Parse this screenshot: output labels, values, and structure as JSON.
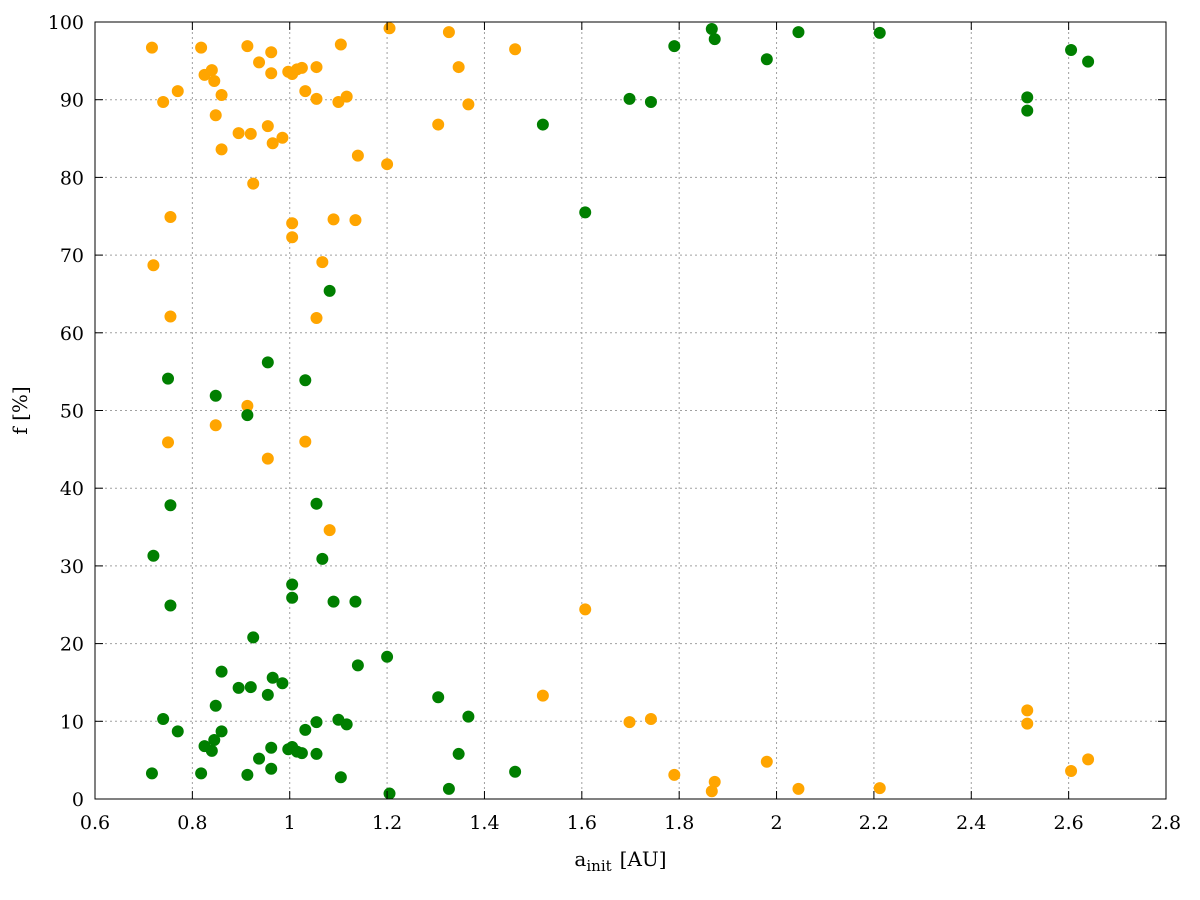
{
  "chart_data": {
    "type": "scatter",
    "title": "",
    "xlabel": "a",
    "xlabel_subscript": "init",
    "xlabel_unit": "[AU]",
    "ylabel": "f [%]",
    "xlim": [
      0.6,
      2.8
    ],
    "ylim": [
      0,
      100
    ],
    "x_ticks": [
      0.6,
      0.8,
      1,
      1.2,
      1.4,
      1.6,
      1.8,
      2,
      2.2,
      2.4,
      2.6,
      2.8
    ],
    "y_ticks": [
      0,
      10,
      20,
      30,
      40,
      50,
      60,
      70,
      80,
      90,
      100
    ],
    "grid": true,
    "legend": "none",
    "series": [
      {
        "color": "#ffa500",
        "points": [
          [
            0.717,
            96.7
          ],
          [
            0.72,
            68.7
          ],
          [
            0.74,
            89.7
          ],
          [
            0.75,
            45.9
          ],
          [
            0.755,
            74.9
          ],
          [
            0.755,
            62.1
          ],
          [
            0.77,
            91.1
          ],
          [
            0.818,
            96.7
          ],
          [
            0.825,
            93.2
          ],
          [
            0.84,
            93.8
          ],
          [
            0.845,
            92.4
          ],
          [
            0.848,
            88.0
          ],
          [
            0.848,
            48.1
          ],
          [
            0.86,
            90.6
          ],
          [
            0.86,
            83.6
          ],
          [
            0.895,
            85.7
          ],
          [
            0.913,
            96.9
          ],
          [
            0.913,
            50.6
          ],
          [
            0.92,
            85.6
          ],
          [
            0.925,
            79.2
          ],
          [
            0.937,
            94.8
          ],
          [
            0.955,
            86.6
          ],
          [
            0.955,
            43.8
          ],
          [
            0.962,
            96.1
          ],
          [
            0.962,
            93.4
          ],
          [
            0.965,
            84.4
          ],
          [
            0.985,
            85.1
          ],
          [
            0.997,
            93.6
          ],
          [
            1.005,
            93.3
          ],
          [
            1.005,
            74.1
          ],
          [
            1.005,
            72.3
          ],
          [
            1.015,
            93.9
          ],
          [
            1.025,
            94.1
          ],
          [
            1.032,
            91.1
          ],
          [
            1.032,
            46.0
          ],
          [
            1.055,
            94.2
          ],
          [
            1.055,
            90.1
          ],
          [
            1.055,
            61.9
          ],
          [
            1.067,
            69.1
          ],
          [
            1.082,
            34.6
          ],
          [
            1.09,
            74.6
          ],
          [
            1.1,
            89.7
          ],
          [
            1.105,
            97.1
          ],
          [
            1.117,
            90.4
          ],
          [
            1.135,
            74.5
          ],
          [
            1.14,
            82.8
          ],
          [
            1.2,
            81.7
          ],
          [
            1.205,
            99.2
          ],
          [
            1.305,
            86.8
          ],
          [
            1.327,
            98.7
          ],
          [
            1.347,
            94.2
          ],
          [
            1.367,
            89.4
          ],
          [
            1.463,
            96.5
          ],
          [
            1.52,
            13.3
          ],
          [
            1.607,
            24.4
          ],
          [
            1.698,
            9.9
          ],
          [
            1.742,
            10.3
          ],
          [
            1.79,
            3.1
          ],
          [
            1.867,
            1.0
          ],
          [
            1.873,
            2.2
          ],
          [
            1.98,
            4.8
          ],
          [
            2.045,
            1.3
          ],
          [
            2.212,
            1.4
          ],
          [
            2.515,
            11.4
          ],
          [
            2.515,
            9.7
          ],
          [
            2.605,
            3.6
          ],
          [
            2.64,
            5.1
          ]
        ]
      },
      {
        "color": "#007f00",
        "points": [
          [
            0.717,
            3.3
          ],
          [
            0.72,
            31.3
          ],
          [
            0.74,
            10.3
          ],
          [
            0.75,
            54.1
          ],
          [
            0.755,
            24.9
          ],
          [
            0.755,
            37.8
          ],
          [
            0.77,
            8.7
          ],
          [
            0.818,
            3.3
          ],
          [
            0.825,
            6.8
          ],
          [
            0.84,
            6.2
          ],
          [
            0.845,
            7.6
          ],
          [
            0.848,
            12.0
          ],
          [
            0.848,
            51.9
          ],
          [
            0.86,
            8.7
          ],
          [
            0.86,
            16.4
          ],
          [
            0.895,
            14.3
          ],
          [
            0.913,
            3.1
          ],
          [
            0.913,
            49.4
          ],
          [
            0.92,
            14.4
          ],
          [
            0.925,
            20.8
          ],
          [
            0.937,
            5.2
          ],
          [
            0.955,
            13.4
          ],
          [
            0.955,
            56.2
          ],
          [
            0.962,
            3.9
          ],
          [
            0.962,
            6.6
          ],
          [
            0.965,
            15.6
          ],
          [
            0.985,
            14.9
          ],
          [
            0.997,
            6.4
          ],
          [
            1.005,
            6.7
          ],
          [
            1.005,
            25.9
          ],
          [
            1.005,
            27.6
          ],
          [
            1.015,
            6.1
          ],
          [
            1.025,
            5.9
          ],
          [
            1.032,
            8.9
          ],
          [
            1.032,
            53.9
          ],
          [
            1.055,
            5.8
          ],
          [
            1.055,
            9.9
          ],
          [
            1.055,
            38.0
          ],
          [
            1.067,
            30.9
          ],
          [
            1.082,
            65.4
          ],
          [
            1.09,
            25.4
          ],
          [
            1.1,
            10.2
          ],
          [
            1.105,
            2.8
          ],
          [
            1.117,
            9.6
          ],
          [
            1.135,
            25.4
          ],
          [
            1.14,
            17.2
          ],
          [
            1.2,
            18.3
          ],
          [
            1.205,
            0.7
          ],
          [
            1.305,
            13.1
          ],
          [
            1.327,
            1.3
          ],
          [
            1.347,
            5.8
          ],
          [
            1.367,
            10.6
          ],
          [
            1.463,
            3.5
          ],
          [
            1.52,
            86.8
          ],
          [
            1.607,
            75.5
          ],
          [
            1.698,
            90.1
          ],
          [
            1.742,
            89.7
          ],
          [
            1.79,
            96.9
          ],
          [
            1.867,
            99.1
          ],
          [
            1.873,
            97.8
          ],
          [
            1.98,
            95.2
          ],
          [
            2.045,
            98.7
          ],
          [
            2.212,
            98.6
          ],
          [
            2.515,
            90.3
          ],
          [
            2.515,
            88.6
          ],
          [
            2.605,
            96.4
          ],
          [
            2.64,
            94.9
          ]
        ]
      }
    ]
  }
}
